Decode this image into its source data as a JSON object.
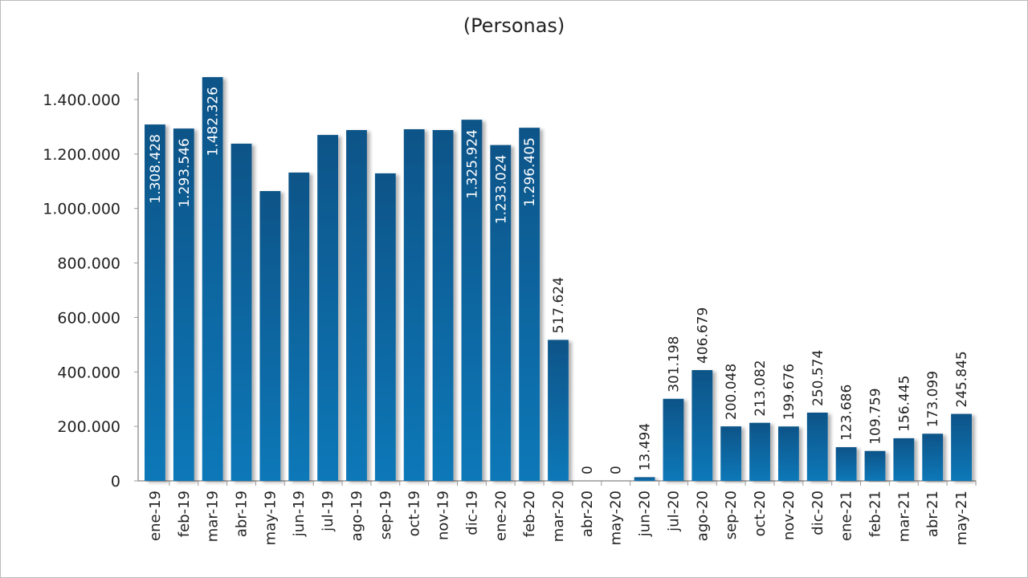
{
  "chart_data": {
    "type": "bar",
    "title": "(Personas)",
    "xlabel": "",
    "ylabel": "",
    "ylim": [
      0,
      1400000
    ],
    "yticks": [
      0,
      200000,
      400000,
      600000,
      800000,
      1000000,
      1200000,
      1400000
    ],
    "ytick_labels": [
      "0",
      "200.000",
      "400.000",
      "600.000",
      "800.000",
      "1.000.000",
      "1.200.000",
      "1.400.000"
    ],
    "categories": [
      "ene-19",
      "feb-19",
      "mar-19",
      "abr-19",
      "may-19",
      "jun-19",
      "jul-19",
      "ago-19",
      "sep-19",
      "oct-19",
      "nov-19",
      "dic-19",
      "ene-20",
      "feb-20",
      "mar-20",
      "abr-20",
      "may-20",
      "jun-20",
      "jul-20",
      "ago-20",
      "sep-20",
      "oct-20",
      "nov-20",
      "dic-20",
      "ene-21",
      "feb-21",
      "mar-21",
      "abr-21",
      "may-21"
    ],
    "values": [
      1308428,
      1293546,
      1482326,
      1238000,
      1064000,
      1132000,
      1270000,
      1288000,
      1129000,
      1291000,
      1288000,
      1325924,
      1233024,
      1296405,
      517624,
      0,
      0,
      13494,
      301198,
      406679,
      200048,
      213082,
      199676,
      250574,
      123686,
      109759,
      156445,
      173099,
      245845
    ],
    "data_labels": [
      "1.308.428",
      "1.293.546",
      "1.482.326",
      "",
      "",
      "",
      "",
      "",
      "",
      "",
      "",
      "1.325.924",
      "1.233.024",
      "1.296.405",
      "517.624",
      "0",
      "0",
      "13.494",
      "301.198",
      "406.679",
      "200.048",
      "213.082",
      "199.676",
      "250.574",
      "123.686",
      "109.759",
      "156.445",
      "173.099",
      "245.845"
    ],
    "bar_color": "#0b5f99",
    "grid": false
  }
}
